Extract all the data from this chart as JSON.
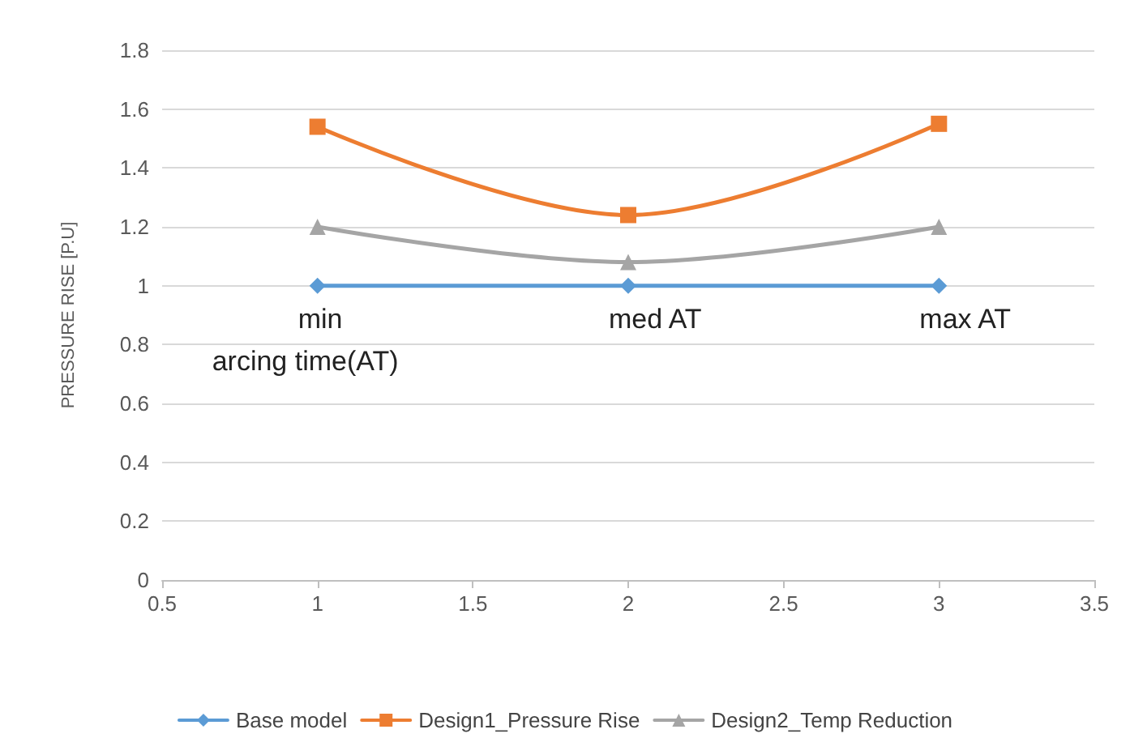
{
  "chart_data": {
    "type": "line",
    "ylabel": "PRESSURE RISE [P.U]",
    "x": [
      1,
      2,
      3
    ],
    "xlim": [
      0.5,
      3.5
    ],
    "xticks": [
      0.5,
      1,
      1.5,
      2,
      2.5,
      3,
      3.5
    ],
    "ylim": [
      0,
      1.8
    ],
    "yticks": [
      0,
      0.2,
      0.4,
      0.6,
      0.8,
      1,
      1.2,
      1.4,
      1.6,
      1.8
    ],
    "grid": "y",
    "legend": "bottom",
    "series": [
      {
        "name": "Base model",
        "color": "#5b9bd5",
        "marker": "diamond",
        "values": [
          1,
          1,
          1
        ]
      },
      {
        "name": "Design1_Pressure Rise",
        "color": "#ed7d31",
        "marker": "square",
        "values": [
          1.54,
          1.24,
          1.55
        ]
      },
      {
        "name": "Design2_Temp Reduction",
        "color": "#a5a5a5",
        "marker": "triangle",
        "values": [
          1.2,
          1.08,
          1.2
        ]
      }
    ],
    "annotations": [
      "min",
      "med AT",
      "max AT",
      "arcing time(AT)"
    ]
  }
}
